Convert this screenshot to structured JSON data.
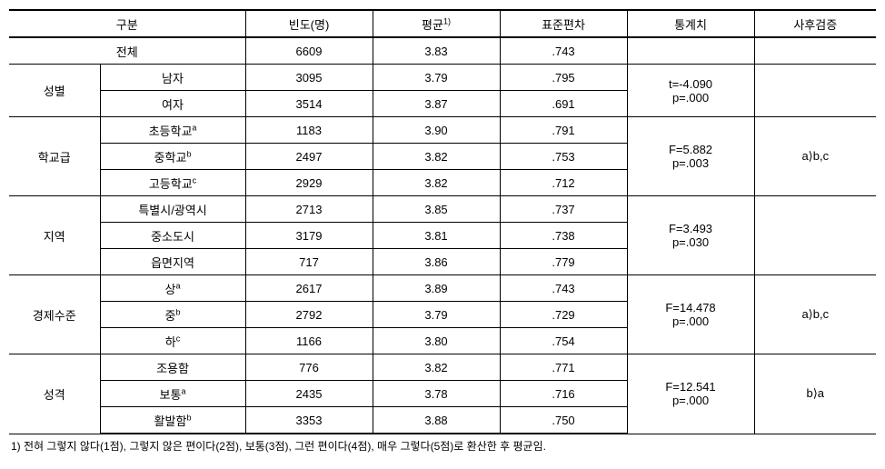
{
  "headers": {
    "category": "구분",
    "freq": "빈도(명)",
    "mean": "평균",
    "meanSup": "1)",
    "sd": "표준편차",
    "stat": "통계치",
    "posthoc": "사후검증"
  },
  "total": {
    "label": "전체",
    "freq": "6609",
    "mean": "3.83",
    "sd": ".743"
  },
  "groups": [
    {
      "name": "성별",
      "rows": [
        {
          "label": "남자",
          "freq": "3095",
          "mean": "3.79",
          "sd": ".795"
        },
        {
          "label": "여자",
          "freq": "3514",
          "mean": "3.87",
          "sd": ".691"
        }
      ],
      "stat": [
        "t=-4.090",
        "p=.000"
      ],
      "posthoc": ""
    },
    {
      "name": "학교급",
      "rows": [
        {
          "label": "초등학교",
          "sup": "a",
          "freq": "1183",
          "mean": "3.90",
          "sd": ".791"
        },
        {
          "label": "중학교",
          "sup": "b",
          "freq": "2497",
          "mean": "3.82",
          "sd": ".753"
        },
        {
          "label": "고등학교",
          "sup": "c",
          "freq": "2929",
          "mean": "3.82",
          "sd": ".712"
        }
      ],
      "stat": [
        "F=5.882",
        "p=.003"
      ],
      "posthoc": "a⟩b,c"
    },
    {
      "name": "지역",
      "rows": [
        {
          "label": "특별시/광역시",
          "freq": "2713",
          "mean": "3.85",
          "sd": ".737"
        },
        {
          "label": "중소도시",
          "freq": "3179",
          "mean": "3.81",
          "sd": ".738"
        },
        {
          "label": "읍면지역",
          "freq": "717",
          "mean": "3.86",
          "sd": ".779"
        }
      ],
      "stat": [
        "F=3.493",
        "p=.030"
      ],
      "posthoc": ""
    },
    {
      "name": "경제수준",
      "rows": [
        {
          "label": "상",
          "sup": "a",
          "freq": "2617",
          "mean": "3.89",
          "sd": ".743"
        },
        {
          "label": "중",
          "sup": "b",
          "freq": "2792",
          "mean": "3.79",
          "sd": ".729"
        },
        {
          "label": "하",
          "sup": "c",
          "freq": "1166",
          "mean": "3.80",
          "sd": ".754"
        }
      ],
      "stat": [
        "F=14.478",
        "p=.000"
      ],
      "posthoc": "a⟩b,c"
    },
    {
      "name": "성격",
      "rows": [
        {
          "label": "조용함",
          "freq": "776",
          "mean": "3.82",
          "sd": ".771"
        },
        {
          "label": "보통",
          "sup": "a",
          "freq": "2435",
          "mean": "3.78",
          "sd": ".716"
        },
        {
          "label": "활발함",
          "sup": "b",
          "freq": "3353",
          "mean": "3.88",
          "sd": ".750"
        }
      ],
      "stat": [
        "F=12.541",
        "p=.000"
      ],
      "posthoc": "b⟩a"
    }
  ],
  "footnote": "1) 전혀 그렇지 않다(1점), 그렇지 않은 편이다(2점), 보통(3점), 그런 편이다(4점), 매우 그렇다(5점)로 환산한 후 평균임.",
  "colWidths": {
    "cat1": 100,
    "cat2": 160,
    "freq": 140,
    "mean": 140,
    "sd": 140,
    "stat": 140,
    "posthoc": 134
  }
}
